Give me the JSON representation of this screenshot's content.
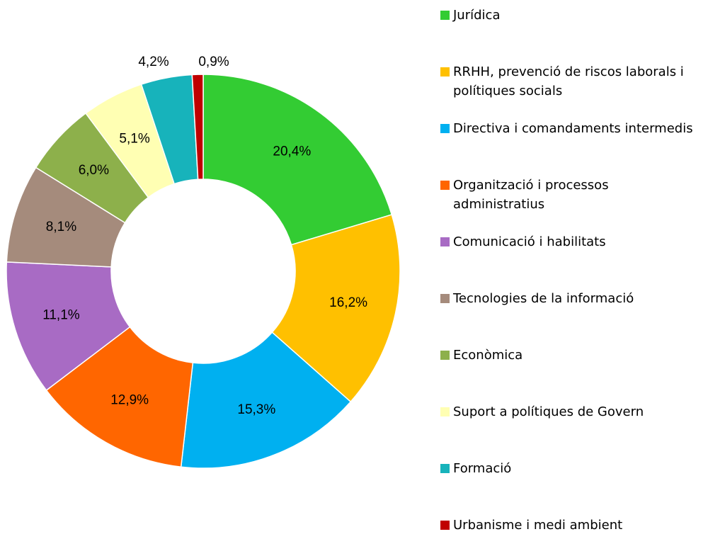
{
  "chart_data": {
    "type": "donut",
    "categories": [
      "Jurídica",
      "RRHH, prevenció de riscos laborals i polítiques socials",
      "Directiva i comandaments intermedis",
      "Organització i processos administratius",
      "Comunicació i habilitats",
      "Tecnologies de la informació",
      "Econòmica",
      "Suport a polítiques de Govern",
      "Formació",
      "Urbanisme i medi ambient"
    ],
    "values": [
      20.4,
      16.2,
      15.3,
      12.9,
      11.1,
      8.1,
      6.0,
      5.1,
      4.2,
      0.9
    ],
    "value_labels": [
      "20,4%",
      "16,2%",
      "15,3%",
      "12,9%",
      "11,1%",
      "8,1%",
      "6,0%",
      "5,1%",
      "4,2%",
      "0,9%"
    ],
    "colors": [
      "#33cc33",
      "#ffc000",
      "#00b0f0",
      "#ff6600",
      "#a86bc4",
      "#a58b7c",
      "#8db04b",
      "#ffffb3",
      "#17b3bb",
      "#c00000"
    ],
    "legend": "right"
  }
}
